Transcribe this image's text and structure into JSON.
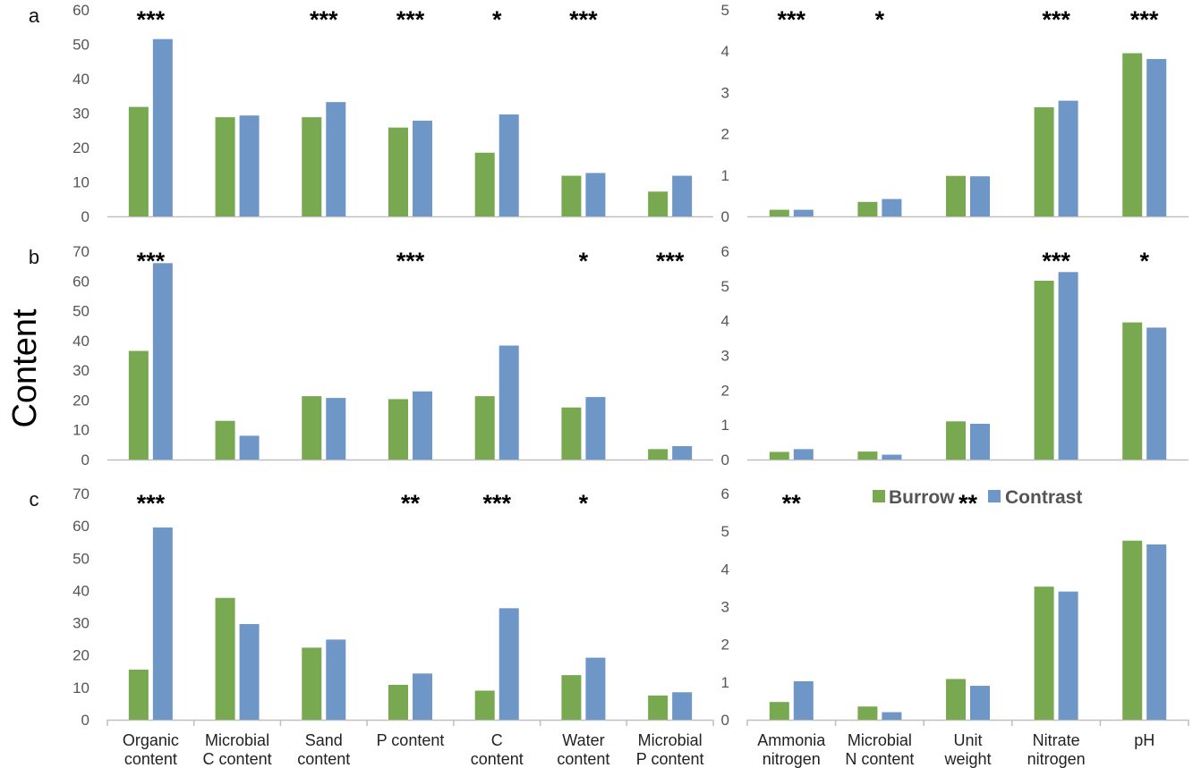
{
  "ylabel": "Content",
  "legend": [
    {
      "name": "Burrow",
      "color": "#78a84f"
    },
    {
      "name": "Contrast",
      "color": "#6e96c6"
    }
  ],
  "colors": {
    "burrow": "#78a84f",
    "contrast": "#6e96c6",
    "axis": "#bfbfbf"
  },
  "left_categories": [
    "Organic content",
    "Microbial C content",
    "Sand content",
    "P content",
    "C content",
    "Water content",
    "Microbial P content"
  ],
  "right_categories": [
    "Ammonia nitrogen",
    "Microbial N content",
    "Unit weight",
    "Nitrate nitrogen",
    "pH"
  ],
  "chart_data": [
    {
      "type": "bar",
      "panel": "a",
      "side": "left",
      "categories": [
        "Organic content",
        "Microbial C content",
        "Sand content",
        "P content",
        "C content",
        "Water content",
        "Microbial P content"
      ],
      "series": [
        {
          "name": "Burrow",
          "values": [
            31.8,
            28.8,
            28.8,
            25.8,
            18.5,
            11.8,
            7.2
          ]
        },
        {
          "name": "Contrast",
          "values": [
            51.5,
            29.3,
            33.2,
            27.8,
            29.6,
            12.6,
            11.8
          ]
        }
      ],
      "significance": [
        "***",
        "",
        "***",
        "***",
        "*",
        "***",
        ""
      ],
      "ylim": [
        0,
        60
      ],
      "yticks": [
        0,
        10,
        20,
        30,
        40,
        50,
        60
      ]
    },
    {
      "type": "bar",
      "panel": "a",
      "side": "right",
      "categories": [
        "Ammonia nitrogen",
        "Microbial N content",
        "Unit weight",
        "Nitrate nitrogen",
        "pH"
      ],
      "series": [
        {
          "name": "Burrow",
          "values": [
            0.16,
            0.35,
            0.98,
            2.64,
            3.95
          ]
        },
        {
          "name": "Contrast",
          "values": [
            0.16,
            0.42,
            0.97,
            2.8,
            3.81
          ]
        }
      ],
      "significance": [
        "***",
        "*",
        "",
        "***",
        "***"
      ],
      "ylim": [
        0,
        5
      ],
      "yticks": [
        0,
        1,
        2,
        3,
        4,
        5
      ]
    },
    {
      "type": "bar",
      "panel": "b",
      "side": "left",
      "categories": [
        "Organic content",
        "Microbial C content",
        "Sand content",
        "P content",
        "C content",
        "Water content",
        "Microbial P content"
      ],
      "series": [
        {
          "name": "Burrow",
          "values": [
            36.5,
            13,
            21.3,
            20.3,
            21.3,
            17.5,
            3.5
          ]
        },
        {
          "name": "Contrast",
          "values": [
            66,
            8,
            20.7,
            22.9,
            38.3,
            21,
            4.5
          ]
        }
      ],
      "significance": [
        "***",
        "",
        "",
        "***",
        "",
        "*",
        "***"
      ],
      "ylim": [
        0,
        70
      ],
      "yticks": [
        0,
        10,
        20,
        30,
        40,
        50,
        60,
        70
      ]
    },
    {
      "type": "bar",
      "panel": "b",
      "side": "right",
      "categories": [
        "Ammonia nitrogen",
        "Microbial N content",
        "Unit weight",
        "Nitrate nitrogen",
        "pH"
      ],
      "series": [
        {
          "name": "Burrow",
          "values": [
            0.22,
            0.23,
            1.1,
            5.15,
            3.95
          ]
        },
        {
          "name": "Contrast",
          "values": [
            0.3,
            0.14,
            1.03,
            5.4,
            3.8
          ]
        }
      ],
      "significance": [
        "",
        "",
        "",
        "***",
        "*"
      ],
      "ylim": [
        0,
        6
      ],
      "yticks": [
        0,
        1,
        2,
        3,
        4,
        5,
        6
      ]
    },
    {
      "type": "bar",
      "panel": "c",
      "side": "left",
      "categories": [
        "Organic content",
        "Microbial C content",
        "Sand content",
        "P content",
        "C content",
        "Water content",
        "Microbial P content"
      ],
      "series": [
        {
          "name": "Burrow",
          "values": [
            15.5,
            37.7,
            22.3,
            10.8,
            9,
            13.8,
            7.5
          ]
        },
        {
          "name": "Contrast",
          "values": [
            59.5,
            29.6,
            24.8,
            14.3,
            34.5,
            19.2,
            8.5
          ]
        }
      ],
      "significance": [
        "***",
        "",
        "",
        "**",
        "***",
        "*",
        ""
      ],
      "ylim": [
        0,
        70
      ],
      "yticks": [
        0,
        10,
        20,
        30,
        40,
        50,
        60,
        70
      ]
    },
    {
      "type": "bar",
      "panel": "c",
      "side": "right",
      "categories": [
        "Ammonia nitrogen",
        "Microbial N content",
        "Unit weight",
        "Nitrate nitrogen",
        "pH"
      ],
      "series": [
        {
          "name": "Burrow",
          "values": [
            0.47,
            0.35,
            1.08,
            3.53,
            4.75
          ]
        },
        {
          "name": "Contrast",
          "values": [
            1.02,
            0.2,
            0.9,
            3.4,
            4.65
          ]
        }
      ],
      "significance": [
        "**",
        "",
        "**",
        "",
        ""
      ],
      "ylim": [
        0,
        6
      ],
      "yticks": [
        0,
        1,
        2,
        3,
        4,
        5,
        6
      ],
      "legend": "top-right"
    }
  ]
}
